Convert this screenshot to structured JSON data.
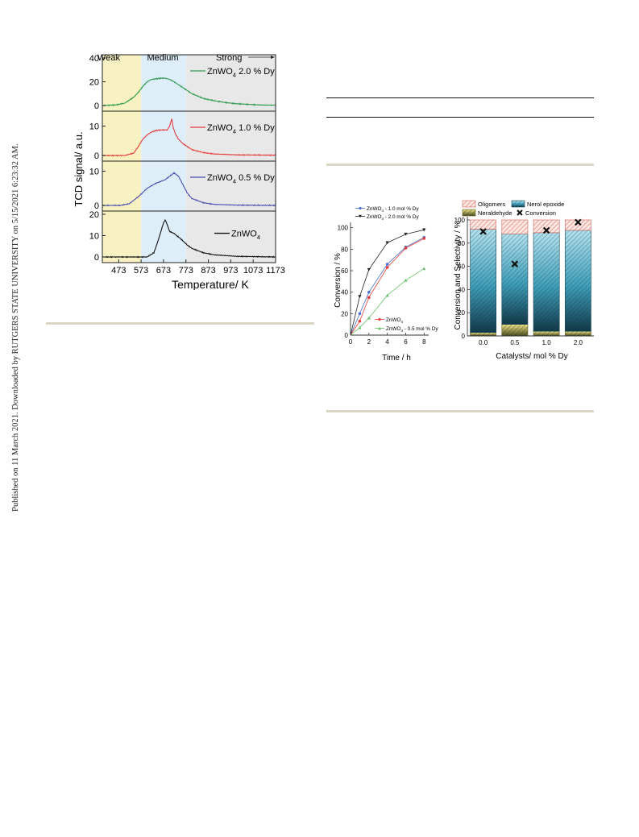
{
  "sidebar_note": "Published on 11 March 2021. Downloaded by RUTGERS STATE UNIVERSITY on 5/15/2021 6:23:32 AM.",
  "tpd_figure": {
    "regions": [
      "Weak",
      "Medium",
      "Strong"
    ],
    "region_colors": [
      "#f8f2c2",
      "#ddeef8",
      "#e8e8e8"
    ],
    "xlabel": "Temperature/ K",
    "ylabel": "TCD signal/ a.u.",
    "x_ticks": [
      "473",
      "573",
      "673",
      "773",
      "873",
      "973",
      "1073",
      "1173"
    ],
    "panel_ticks": [
      [
        "0",
        "20",
        "40"
      ],
      [
        "0",
        "10"
      ],
      [
        "0",
        "10"
      ],
      [
        "0",
        "10",
        "20"
      ]
    ],
    "legends": [
      "ZnWO4 2.0 % Dy",
      "ZnWO4 1.0 % Dy",
      "ZnWO4 0.5 % Dy",
      "ZnWO4"
    ],
    "colors": [
      "#2e9a4e",
      "#e53b3b",
      "#4a4fb0",
      "#111111"
    ]
  },
  "chart_data": [
    {
      "type": "line",
      "xlabel": "Temperature/ K",
      "ylabel": "TCD signal/ a.u.",
      "xlim": [
        400,
        1173
      ],
      "regions": [
        {
          "name": "Weak",
          "from": 400,
          "to": 573
        },
        {
          "name": "Medium",
          "from": 573,
          "to": 773
        },
        {
          "name": "Strong",
          "from": 773,
          "to": 1173
        }
      ],
      "panels": [
        {
          "name": "ZnWO4 2.0 % Dy",
          "ylim": [
            0,
            40
          ],
          "x": [
            400,
            460,
            500,
            540,
            560,
            580,
            600,
            620,
            640,
            660,
            680,
            700,
            720,
            760,
            800,
            850,
            900,
            950,
            1000,
            1050,
            1100,
            1173
          ],
          "y": [
            0,
            0.5,
            2,
            7,
            11,
            16,
            20,
            22,
            22.5,
            23,
            23,
            22,
            20,
            15,
            10,
            6,
            4,
            2.5,
            1.5,
            1,
            0.5,
            0.3
          ]
        },
        {
          "name": "ZnWO4 1.0 % Dy",
          "ylim": [
            0,
            14
          ],
          "x": [
            400,
            460,
            500,
            540,
            560,
            580,
            600,
            620,
            640,
            660,
            690,
            700,
            710,
            715,
            725,
            740,
            760,
            800,
            850,
            900,
            1000,
            1173
          ],
          "y": [
            0,
            0,
            0,
            0.8,
            3,
            5.5,
            7,
            8,
            8.5,
            8.7,
            8.7,
            10,
            12.5,
            10,
            7.5,
            5.5,
            4,
            2,
            1,
            0.5,
            0.2,
            0.1
          ]
        },
        {
          "name": "ZnWO4 0.5 % Dy",
          "ylim": [
            0,
            12
          ],
          "x": [
            400,
            480,
            520,
            560,
            600,
            640,
            680,
            700,
            720,
            740,
            760,
            780,
            800,
            850,
            900,
            1000,
            1173
          ],
          "y": [
            0,
            0,
            0.5,
            2.5,
            5,
            6.5,
            7.5,
            8.5,
            9.5,
            8.5,
            6,
            3.5,
            2,
            0.8,
            0.3,
            0.1,
            0
          ]
        },
        {
          "name": "ZnWO4",
          "ylim": [
            0,
            20
          ],
          "x": [
            400,
            600,
            630,
            650,
            670,
            680,
            690,
            700,
            720,
            750,
            780,
            800,
            850,
            900,
            1000,
            1173
          ],
          "y": [
            0,
            0,
            2,
            8,
            15,
            17.5,
            15,
            12,
            11,
            8.5,
            5.5,
            4,
            2,
            1,
            0.3,
            0
          ]
        }
      ]
    },
    {
      "type": "line",
      "xlabel": "Time / h",
      "ylabel": "Conversion / %",
      "xlim": [
        0,
        8.5
      ],
      "ylim": [
        0,
        105
      ],
      "x_ticks": [
        "0",
        "2",
        "4",
        "6",
        "8"
      ],
      "y_ticks": [
        "0",
        "20",
        "40",
        "60",
        "80",
        "100"
      ],
      "series": [
        {
          "name": "ZnWO4 - 1.0 mol % Dy",
          "color": "#4a6fd0",
          "marker": "circle",
          "x": [
            1,
            2,
            4,
            6,
            8
          ],
          "y": [
            20,
            40,
            66,
            82,
            91
          ]
        },
        {
          "name": "ZnWO4 - 2.0 mol % Dy",
          "color": "#222222",
          "marker": "triangle-down",
          "x": [
            1,
            2,
            4,
            6,
            8
          ],
          "y": [
            36,
            61,
            86,
            94,
            98
          ]
        },
        {
          "name": "ZnWO4",
          "color": "#e53b3b",
          "marker": "circle",
          "x": [
            1,
            2,
            4,
            6,
            8
          ],
          "y": [
            13,
            35,
            63,
            81,
            90
          ]
        },
        {
          "name": "ZnWO4 - 0.5 mol % Dy",
          "color": "#6cc06c",
          "marker": "triangle-up",
          "x": [
            1,
            2,
            4,
            6,
            8
          ],
          "y": [
            7,
            16,
            37,
            51,
            62
          ]
        }
      ],
      "legend_top": [
        "ZnWO4 - 1.0 mol % Dy",
        "ZnWO4 - 2.0 mol % Dy"
      ],
      "legend_bottom": [
        "ZnWO4",
        "ZnWO4 - 0.5 mol % Dy"
      ]
    },
    {
      "type": "bar",
      "stacked": true,
      "xlabel": "Catalysts/ mol % Dy",
      "ylabel": "Conversion and Selectivity / %",
      "ylim": [
        0,
        100
      ],
      "y_ticks": [
        "0",
        "20",
        "40",
        "60",
        "80",
        "100"
      ],
      "categories": [
        "0.0",
        "0.5",
        "1.0",
        "2.0"
      ],
      "series": [
        {
          "name": "Neraldehyde",
          "color": "#e4d96a",
          "values": [
            3,
            10,
            4,
            4
          ]
        },
        {
          "name": "Nerol epoxide",
          "color": "#5cbccf",
          "values": [
            89,
            78,
            85,
            87
          ]
        },
        {
          "name": "Oligomers",
          "color": "#f4b8b0",
          "values": [
            8,
            12,
            11,
            9
          ]
        }
      ],
      "conversion": {
        "name": "Conversion",
        "values": [
          90,
          62,
          91,
          98
        ]
      },
      "legend": [
        "Oligomers",
        "Nerol epoxide",
        "Neraldehyde",
        "Conversion"
      ]
    }
  ]
}
